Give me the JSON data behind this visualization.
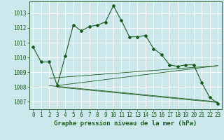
{
  "title": "Graphe pression niveau de la mer (hPa)",
  "bg_color": "#cce8ec",
  "grid_color": "#ffffff",
  "line_color": "#1a5c1a",
  "xlim": [
    -0.5,
    23.5
  ],
  "ylim": [
    1006.5,
    1013.8
  ],
  "yticks": [
    1007,
    1008,
    1009,
    1010,
    1011,
    1012,
    1013
  ],
  "xticks": [
    0,
    1,
    2,
    3,
    4,
    5,
    6,
    7,
    8,
    9,
    10,
    11,
    12,
    13,
    14,
    15,
    16,
    17,
    18,
    19,
    20,
    21,
    22,
    23
  ],
  "main_x": [
    0,
    1,
    2,
    3,
    4,
    5,
    6,
    7,
    8,
    9,
    10,
    11,
    12,
    13,
    14,
    15,
    16,
    17,
    18,
    19,
    20,
    21,
    22,
    23
  ],
  "main_y": [
    1010.7,
    1009.7,
    1009.7,
    1008.1,
    1010.1,
    1012.2,
    1011.8,
    1012.1,
    1012.2,
    1012.4,
    1013.5,
    1012.5,
    1011.4,
    1011.4,
    1011.5,
    1010.6,
    1010.2,
    1009.5,
    1009.4,
    1009.5,
    1009.5,
    1008.3,
    1007.3,
    1006.9
  ],
  "trend1_x": [
    2,
    23
  ],
  "trend1_y": [
    1008.6,
    1009.45
  ],
  "trend2_x": [
    2,
    23
  ],
  "trend2_y": [
    1008.1,
    1007.0
  ],
  "trend3_x": [
    3,
    23
  ],
  "trend3_y": [
    1008.1,
    1009.45
  ],
  "trend4_x": [
    3,
    23
  ],
  "trend4_y": [
    1008.0,
    1006.95
  ],
  "tick_fontsize": 5.5,
  "title_fontsize": 6.5
}
